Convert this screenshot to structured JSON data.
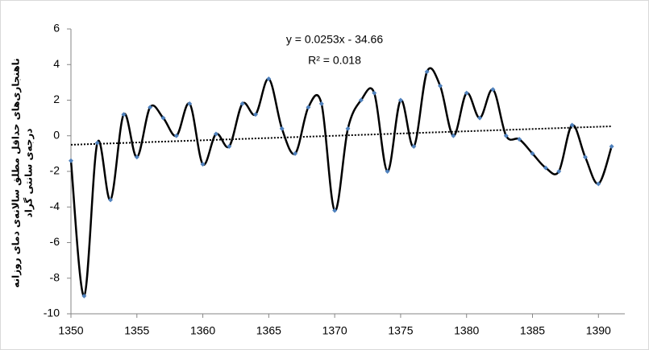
{
  "chart_data": {
    "type": "line",
    "y_label": [
      "ناهنجاری‌های حداقل مطلق سالانه‌ی دمای روزانه",
      "درجه‌ی سانتی گراد"
    ],
    "annotations": [
      "y = 0.0253x - 34.66",
      "R² = 0.018"
    ],
    "trendline": {
      "slope": 0.0253,
      "intercept": -34.66
    },
    "x": [
      1350,
      1351,
      1352,
      1353,
      1354,
      1355,
      1356,
      1357,
      1358,
      1359,
      1360,
      1361,
      1362,
      1363,
      1364,
      1365,
      1366,
      1367,
      1368,
      1369,
      1370,
      1371,
      1372,
      1373,
      1374,
      1375,
      1376,
      1377,
      1378,
      1379,
      1380,
      1381,
      1382,
      1383,
      1384,
      1385,
      1386,
      1387,
      1388,
      1389,
      1390,
      1391
    ],
    "series": [
      {
        "color": "#000000",
        "marker_color": "#4f81bd",
        "values": [
          -1.4,
          -9.0,
          -0.4,
          -3.6,
          1.2,
          -1.2,
          1.6,
          1.0,
          0.0,
          1.8,
          -1.6,
          0.1,
          -0.6,
          1.8,
          1.2,
          3.2,
          0.4,
          -1.0,
          1.6,
          1.8,
          -4.2,
          0.4,
          2.0,
          2.4,
          -2.0,
          2.0,
          -0.6,
          3.6,
          2.8,
          0.0,
          2.4,
          1.0,
          2.6,
          0.0,
          -0.2,
          -1.0,
          -1.8,
          -2.0,
          0.6,
          -1.2,
          -2.7,
          -0.6
        ]
      }
    ],
    "xlim": [
      1350,
      1392
    ],
    "xticks": [
      1350,
      1355,
      1360,
      1365,
      1370,
      1375,
      1380,
      1385,
      1390
    ],
    "ylim": [
      -10,
      6
    ],
    "yticks": [
      -10,
      -8,
      -6,
      -4,
      -2,
      0,
      2,
      4,
      6
    ]
  }
}
